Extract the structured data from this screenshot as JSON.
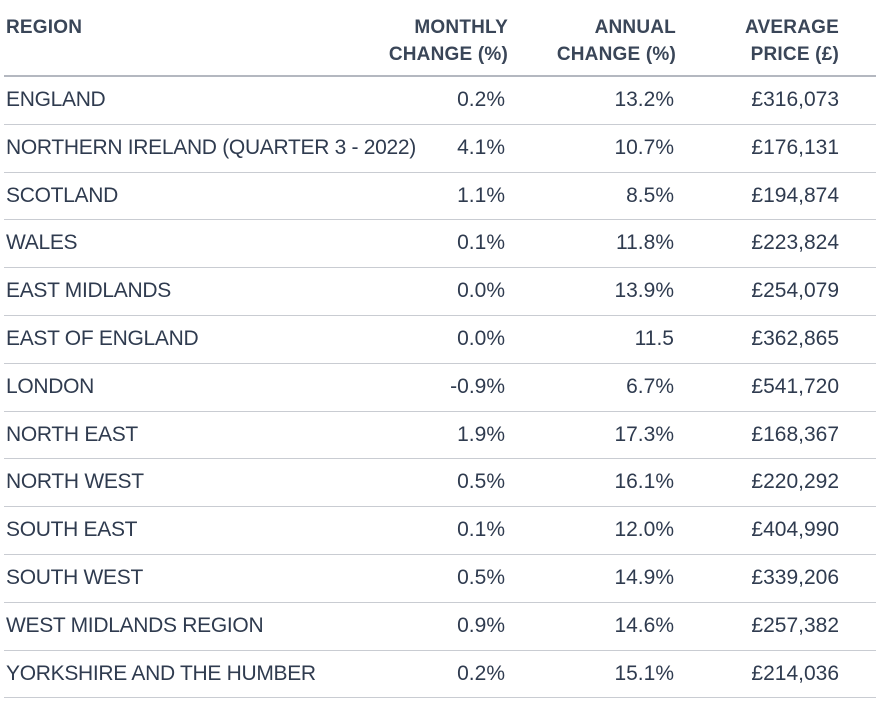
{
  "headers": {
    "region": "REGION",
    "monthly_line1": "MONTHLY",
    "monthly_line2": "CHANGE (%)",
    "annual_line1": "ANNUAL",
    "annual_line2": "CHANGE (%)",
    "price_line1": "AVERAGE",
    "price_line2": "PRICE (£)"
  },
  "rows": [
    {
      "region": "ENGLAND",
      "monthly": "0.2%",
      "annual": "13.2%",
      "price": "£316,073"
    },
    {
      "region": "NORTHERN IRELAND (QUARTER 3 - 2022)",
      "monthly": "4.1%",
      "annual": "10.7%",
      "price": "£176,131"
    },
    {
      "region": "SCOTLAND",
      "monthly": "1.1%",
      "annual": "8.5%",
      "price": "£194,874"
    },
    {
      "region": "WALES",
      "monthly": "0.1%",
      "annual": "11.8%",
      "price": "£223,824"
    },
    {
      "region": "EAST MIDLANDS",
      "monthly": "0.0%",
      "annual": "13.9%",
      "price": "£254,079"
    },
    {
      "region": "EAST OF ENGLAND",
      "monthly": "0.0%",
      "annual": "11.5",
      "price": "£362,865"
    },
    {
      "region": "LONDON",
      "monthly": "-0.9%",
      "annual": "6.7%",
      "price": "£541,720"
    },
    {
      "region": "NORTH EAST",
      "monthly": "1.9%",
      "annual": "17.3%",
      "price": "£168,367"
    },
    {
      "region": "NORTH WEST",
      "monthly": "0.5%",
      "annual": "16.1%",
      "price": "£220,292"
    },
    {
      "region": "SOUTH EAST",
      "monthly": "0.1%",
      "annual": "12.0%",
      "price": "£404,990"
    },
    {
      "region": "SOUTH WEST",
      "monthly": "0.5%",
      "annual": "14.9%",
      "price": "£339,206"
    },
    {
      "region": "WEST MIDLANDS REGION",
      "monthly": "0.9%",
      "annual": "14.6%",
      "price": "£257,382"
    },
    {
      "region": "YORKSHIRE AND THE HUMBER",
      "monthly": "0.2%",
      "annual": "15.1%",
      "price": "£214,036"
    }
  ]
}
